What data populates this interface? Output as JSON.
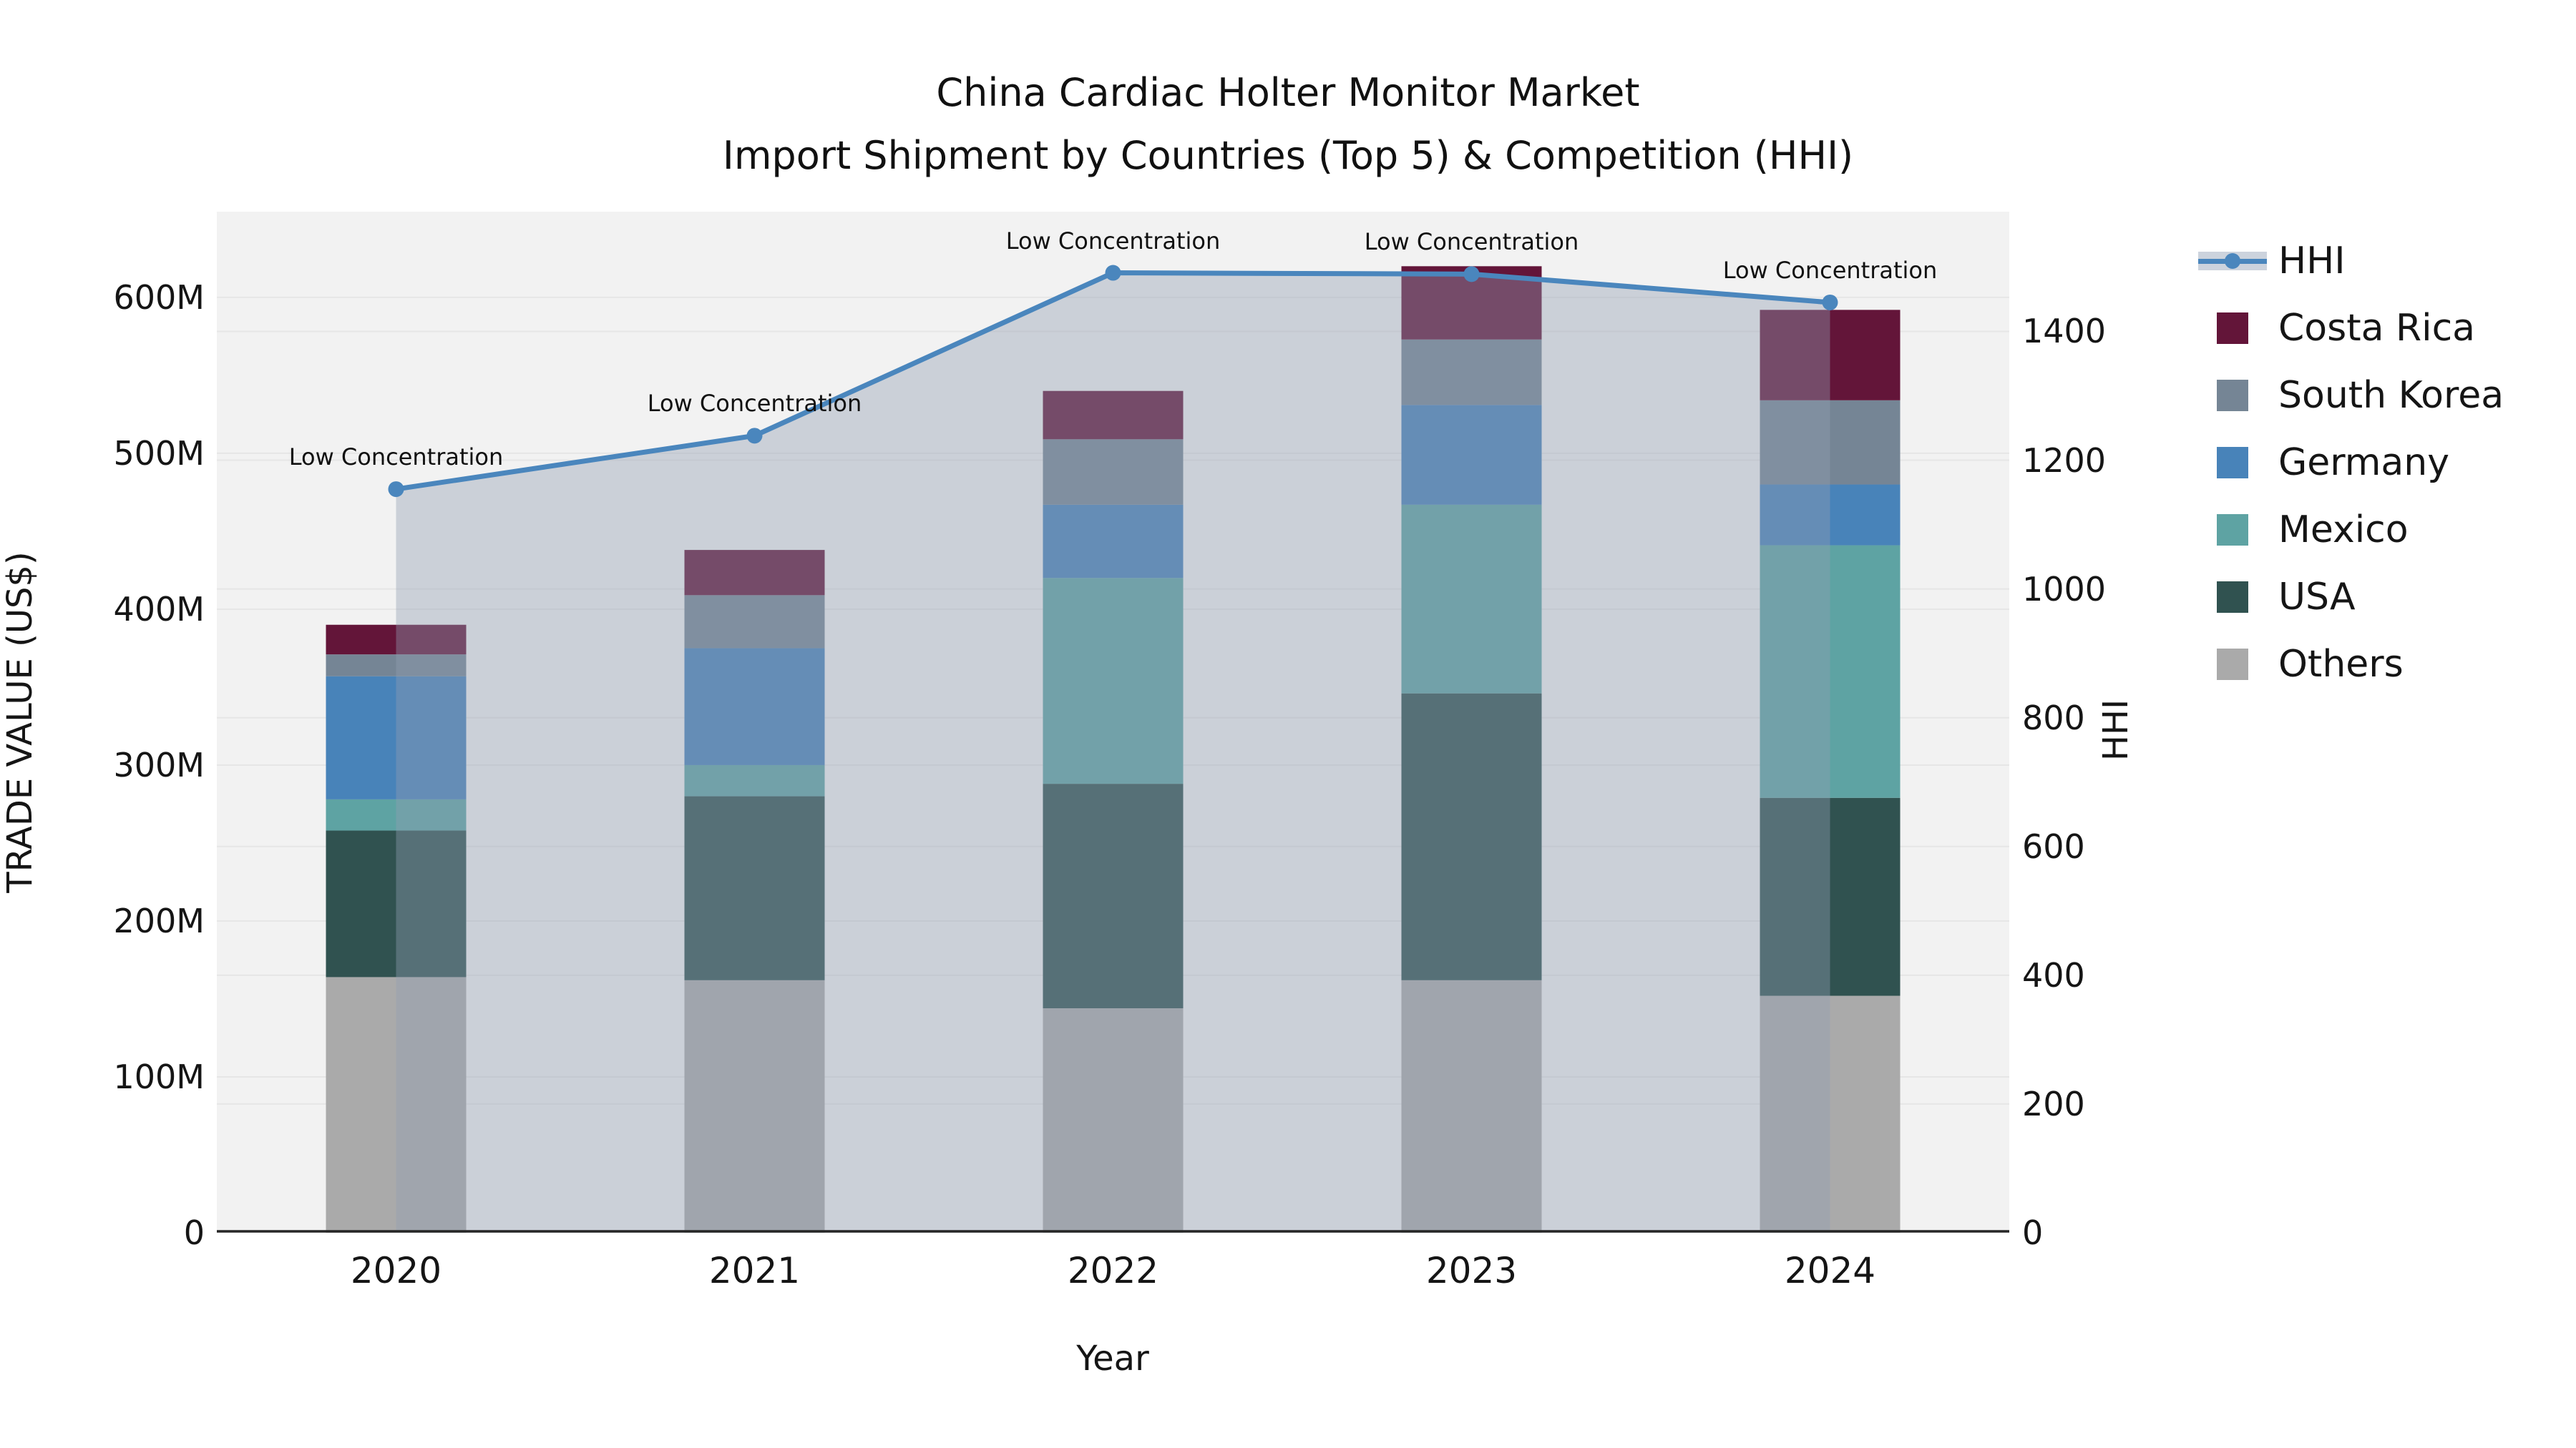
{
  "title": {
    "line1": "China Cardiac Holter Monitor Market",
    "line2": "Import Shipment by Countries (Top 5) & Competition (HHI)"
  },
  "axes": {
    "x": {
      "label": "Year",
      "categories": [
        "2020",
        "2021",
        "2022",
        "2023",
        "2024"
      ]
    },
    "y_left": {
      "label": "TRADE VALUE (US$)",
      "tick_labels": [
        "0",
        "100M",
        "200M",
        "300M",
        "400M",
        "500M",
        "600M"
      ],
      "tick_values": [
        0,
        100,
        200,
        300,
        400,
        500,
        600
      ],
      "max": 655
    },
    "y_right": {
      "label": "HHI",
      "tick_labels": [
        "0",
        "200",
        "400",
        "600",
        "800",
        "1000",
        "1200",
        "1400"
      ],
      "tick_values": [
        0,
        200,
        400,
        600,
        800,
        1000,
        1200,
        1400
      ],
      "max": 1586
    }
  },
  "chart_data": {
    "type": "bar",
    "stacked": true,
    "grid": true,
    "plot_background": "#f2f2f2",
    "categories": [
      "2020",
      "2021",
      "2022",
      "2023",
      "2024"
    ],
    "value_unit": "million US$",
    "series": [
      {
        "name": "Others",
        "color": "#aaaaaa",
        "values": [
          164,
          162,
          144,
          162,
          152
        ]
      },
      {
        "name": "USA",
        "color": "#305250",
        "values": [
          94,
          118,
          144,
          184,
          127
        ]
      },
      {
        "name": "Mexico",
        "color": "#5ea3a3",
        "values": [
          20,
          20,
          132,
          121,
          162
        ]
      },
      {
        "name": "Germany",
        "color": "#4883b9",
        "values": [
          79,
          75,
          47,
          64,
          39
        ]
      },
      {
        "name": "South Korea",
        "color": "#758595",
        "values": [
          14,
          34,
          42,
          42,
          54
        ]
      },
      {
        "name": "Costa Rica",
        "color": "#631539",
        "values": [
          19,
          29,
          31,
          47,
          58
        ]
      }
    ],
    "stack_totals": [
      390,
      438,
      540,
      620,
      592
    ],
    "line": {
      "name": "HHI",
      "axis": "right",
      "color": "#4a86bd",
      "area_fill": "rgba(145,158,178,0.40)",
      "values": [
        1155,
        1238,
        1491,
        1489,
        1445
      ],
      "annotations": [
        "Low Concentration",
        "Low Concentration",
        "Low Concentration",
        "Low Concentration",
        "Low Concentration"
      ]
    },
    "legend_position": "right"
  },
  "legend": {
    "items": [
      {
        "label": "HHI",
        "type": "line",
        "color": "#4a86bd"
      },
      {
        "label": "Costa Rica",
        "type": "swatch",
        "color": "#631539"
      },
      {
        "label": "South Korea",
        "type": "swatch",
        "color": "#758595"
      },
      {
        "label": "Germany",
        "type": "swatch",
        "color": "#4883b9"
      },
      {
        "label": "Mexico",
        "type": "swatch",
        "color": "#5ea3a3"
      },
      {
        "label": "USA",
        "type": "swatch",
        "color": "#305250"
      },
      {
        "label": "Others",
        "type": "swatch",
        "color": "#aaaaaa"
      }
    ]
  },
  "colors": {
    "grid": "#e6e6e6",
    "spine": "#262626",
    "text": "#151515"
  }
}
